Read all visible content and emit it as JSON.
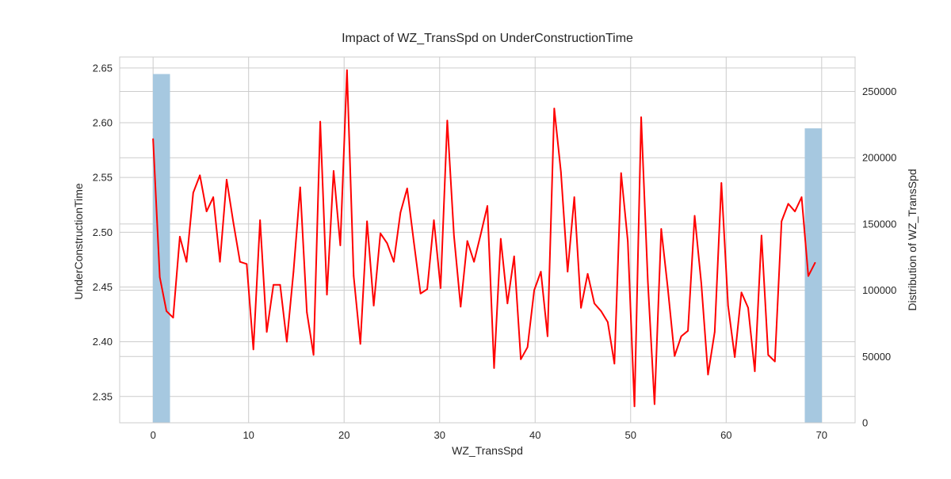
{
  "chart_data": {
    "type": "line",
    "title": "Impact of WZ_TransSpd on UnderConstructionTime",
    "xlabel": "WZ_TransSpd",
    "ylabel": "UnderConstructionTime",
    "y2label": "Distribution of WZ_TransSpd",
    "xlim": [
      -3.5,
      73.5
    ],
    "ylim": [
      2.326,
      2.66
    ],
    "y2lim": [
      0,
      276000
    ],
    "xticks": [
      0,
      10,
      20,
      30,
      40,
      50,
      60,
      70
    ],
    "yticks": [
      2.35,
      2.4,
      2.45,
      2.5,
      2.55,
      2.6,
      2.65
    ],
    "y2ticks": [
      0,
      50000,
      100000,
      150000,
      200000,
      250000
    ],
    "grid": true,
    "line_color": "#ff0000",
    "bar_color": "#a6c8e0",
    "series": [
      {
        "type": "line",
        "x": [
          0,
          0.7,
          1.4,
          2.1,
          2.8,
          3.5,
          4.2,
          4.9,
          5.6,
          6.3,
          7.0,
          7.7,
          8.4,
          9.1,
          9.8,
          10.5,
          11.2,
          11.9,
          12.6,
          13.3,
          14.0,
          14.7,
          15.4,
          16.1,
          16.8,
          17.5,
          18.2,
          18.9,
          19.6,
          20.3,
          21.0,
          21.7,
          22.4,
          23.1,
          23.8,
          24.5,
          25.2,
          25.9,
          26.6,
          27.3,
          28.0,
          28.7,
          29.4,
          30.1,
          30.8,
          31.5,
          32.2,
          32.9,
          33.6,
          34.3,
          35.0,
          35.7,
          36.4,
          37.1,
          37.8,
          38.5,
          39.2,
          39.9,
          40.6,
          41.3,
          42.0,
          42.7,
          43.4,
          44.1,
          44.8,
          45.5,
          46.2,
          46.9,
          47.6,
          48.3,
          49.0,
          49.7,
          50.4,
          51.1,
          51.8,
          52.5,
          53.2,
          53.9,
          54.6,
          55.3,
          56.0,
          56.7,
          57.4,
          58.1,
          58.8,
          59.5,
          60.2,
          60.9,
          61.6,
          62.3,
          63.0,
          63.7,
          64.4,
          65.1,
          65.8,
          66.5,
          67.2,
          67.9,
          68.6,
          69.3
        ],
        "y": [
          2.585,
          2.459,
          2.428,
          2.422,
          2.496,
          2.473,
          2.536,
          2.552,
          2.519,
          2.532,
          2.473,
          2.548,
          2.509,
          2.473,
          2.471,
          2.393,
          2.511,
          2.409,
          2.452,
          2.452,
          2.4,
          2.464,
          2.541,
          2.427,
          2.388,
          2.601,
          2.443,
          2.556,
          2.488,
          2.648,
          2.46,
          2.398,
          2.51,
          2.433,
          2.499,
          2.49,
          2.473,
          2.518,
          2.54,
          2.491,
          2.444,
          2.448,
          2.511,
          2.449,
          2.602,
          2.497,
          2.432,
          2.492,
          2.473,
          2.498,
          2.524,
          2.376,
          2.494,
          2.435,
          2.478,
          2.384,
          2.395,
          2.447,
          2.464,
          2.405,
          2.613,
          2.555,
          2.464,
          2.532,
          2.431,
          2.462,
          2.435,
          2.428,
          2.418,
          2.38,
          2.554,
          2.492,
          2.341,
          2.605,
          2.455,
          2.343,
          2.503,
          2.448,
          2.387,
          2.405,
          2.41,
          2.515,
          2.453,
          2.37,
          2.409,
          2.545,
          2.433,
          2.386,
          2.445,
          2.431,
          2.373,
          2.497,
          2.388,
          2.382,
          2.51,
          2.526,
          2.519,
          2.532,
          2.46,
          2.472
        ]
      },
      {
        "type": "bar",
        "axis": "secondary",
        "bins": [
          {
            "x0": 0,
            "x1": 1.75,
            "value": 263000
          },
          {
            "x0": 68.25,
            "x1": 70,
            "value": 222000
          }
        ]
      }
    ]
  }
}
